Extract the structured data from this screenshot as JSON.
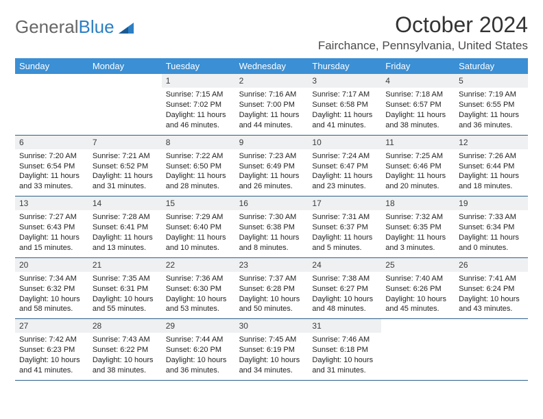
{
  "brand": {
    "part1": "General",
    "part2": "Blue"
  },
  "colors": {
    "header_bg": "#3b8fd4",
    "header_text": "#ffffff",
    "daynum_bg": "#eef0f1",
    "week_border": "#2b5f8a",
    "title_color": "#333333",
    "body_text": "#222222",
    "logo_gray": "#666666",
    "logo_blue": "#2b7fc4"
  },
  "title": "October 2024",
  "location": "Fairchance, Pennsylvania, United States",
  "weekdays": [
    "Sunday",
    "Monday",
    "Tuesday",
    "Wednesday",
    "Thursday",
    "Friday",
    "Saturday"
  ],
  "weeks": [
    [
      null,
      null,
      {
        "n": "1",
        "sr": "7:15 AM",
        "ss": "7:02 PM",
        "dl": "11 hours and 46 minutes."
      },
      {
        "n": "2",
        "sr": "7:16 AM",
        "ss": "7:00 PM",
        "dl": "11 hours and 44 minutes."
      },
      {
        "n": "3",
        "sr": "7:17 AM",
        "ss": "6:58 PM",
        "dl": "11 hours and 41 minutes."
      },
      {
        "n": "4",
        "sr": "7:18 AM",
        "ss": "6:57 PM",
        "dl": "11 hours and 38 minutes."
      },
      {
        "n": "5",
        "sr": "7:19 AM",
        "ss": "6:55 PM",
        "dl": "11 hours and 36 minutes."
      }
    ],
    [
      {
        "n": "6",
        "sr": "7:20 AM",
        "ss": "6:54 PM",
        "dl": "11 hours and 33 minutes."
      },
      {
        "n": "7",
        "sr": "7:21 AM",
        "ss": "6:52 PM",
        "dl": "11 hours and 31 minutes."
      },
      {
        "n": "8",
        "sr": "7:22 AM",
        "ss": "6:50 PM",
        "dl": "11 hours and 28 minutes."
      },
      {
        "n": "9",
        "sr": "7:23 AM",
        "ss": "6:49 PM",
        "dl": "11 hours and 26 minutes."
      },
      {
        "n": "10",
        "sr": "7:24 AM",
        "ss": "6:47 PM",
        "dl": "11 hours and 23 minutes."
      },
      {
        "n": "11",
        "sr": "7:25 AM",
        "ss": "6:46 PM",
        "dl": "11 hours and 20 minutes."
      },
      {
        "n": "12",
        "sr": "7:26 AM",
        "ss": "6:44 PM",
        "dl": "11 hours and 18 minutes."
      }
    ],
    [
      {
        "n": "13",
        "sr": "7:27 AM",
        "ss": "6:43 PM",
        "dl": "11 hours and 15 minutes."
      },
      {
        "n": "14",
        "sr": "7:28 AM",
        "ss": "6:41 PM",
        "dl": "11 hours and 13 minutes."
      },
      {
        "n": "15",
        "sr": "7:29 AM",
        "ss": "6:40 PM",
        "dl": "11 hours and 10 minutes."
      },
      {
        "n": "16",
        "sr": "7:30 AM",
        "ss": "6:38 PM",
        "dl": "11 hours and 8 minutes."
      },
      {
        "n": "17",
        "sr": "7:31 AM",
        "ss": "6:37 PM",
        "dl": "11 hours and 5 minutes."
      },
      {
        "n": "18",
        "sr": "7:32 AM",
        "ss": "6:35 PM",
        "dl": "11 hours and 3 minutes."
      },
      {
        "n": "19",
        "sr": "7:33 AM",
        "ss": "6:34 PM",
        "dl": "11 hours and 0 minutes."
      }
    ],
    [
      {
        "n": "20",
        "sr": "7:34 AM",
        "ss": "6:32 PM",
        "dl": "10 hours and 58 minutes."
      },
      {
        "n": "21",
        "sr": "7:35 AM",
        "ss": "6:31 PM",
        "dl": "10 hours and 55 minutes."
      },
      {
        "n": "22",
        "sr": "7:36 AM",
        "ss": "6:30 PM",
        "dl": "10 hours and 53 minutes."
      },
      {
        "n": "23",
        "sr": "7:37 AM",
        "ss": "6:28 PM",
        "dl": "10 hours and 50 minutes."
      },
      {
        "n": "24",
        "sr": "7:38 AM",
        "ss": "6:27 PM",
        "dl": "10 hours and 48 minutes."
      },
      {
        "n": "25",
        "sr": "7:40 AM",
        "ss": "6:26 PM",
        "dl": "10 hours and 45 minutes."
      },
      {
        "n": "26",
        "sr": "7:41 AM",
        "ss": "6:24 PM",
        "dl": "10 hours and 43 minutes."
      }
    ],
    [
      {
        "n": "27",
        "sr": "7:42 AM",
        "ss": "6:23 PM",
        "dl": "10 hours and 41 minutes."
      },
      {
        "n": "28",
        "sr": "7:43 AM",
        "ss": "6:22 PM",
        "dl": "10 hours and 38 minutes."
      },
      {
        "n": "29",
        "sr": "7:44 AM",
        "ss": "6:20 PM",
        "dl": "10 hours and 36 minutes."
      },
      {
        "n": "30",
        "sr": "7:45 AM",
        "ss": "6:19 PM",
        "dl": "10 hours and 34 minutes."
      },
      {
        "n": "31",
        "sr": "7:46 AM",
        "ss": "6:18 PM",
        "dl": "10 hours and 31 minutes."
      },
      null,
      null
    ]
  ],
  "labels": {
    "sunrise": "Sunrise: ",
    "sunset": "Sunset: ",
    "daylight": "Daylight: "
  }
}
